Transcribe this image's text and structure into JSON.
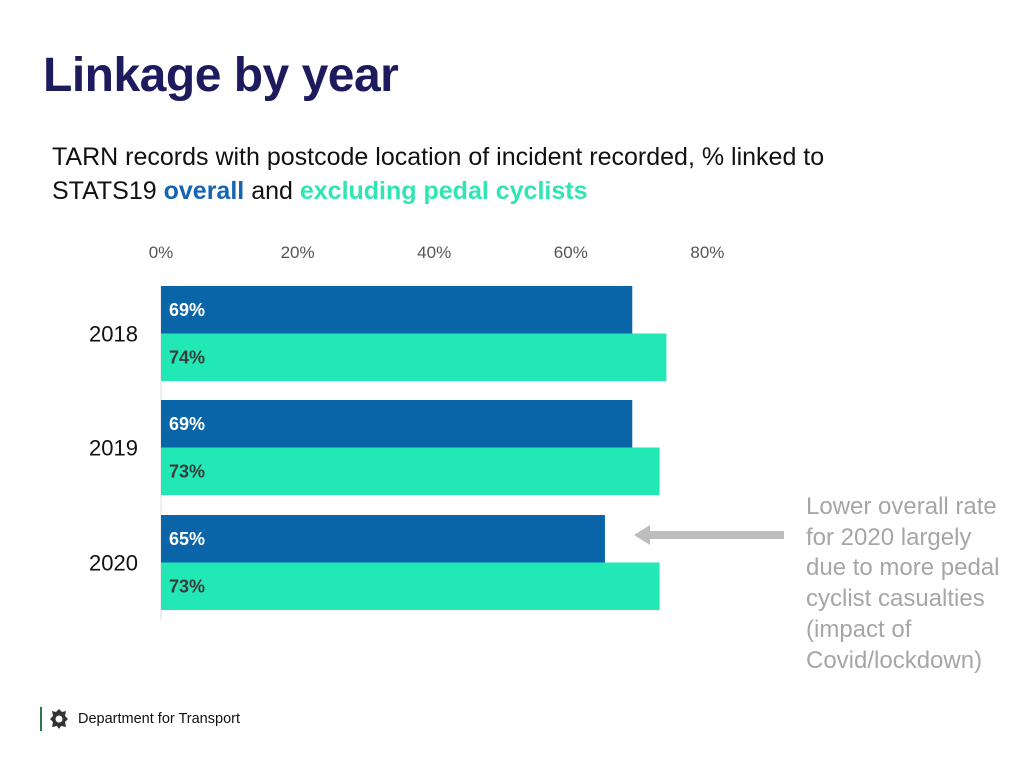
{
  "title": "Linkage by year",
  "subtitle": {
    "prefix": "TARN records with postcode location of incident recorded, % linked to STATS19",
    "overall": "overall",
    "and": "and",
    "excluding": "excluding pedal cyclists"
  },
  "annotation": "Lower overall rate for 2020 largely due to more pedal cyclist casualties (impact of Covid/lockdown)",
  "logo": {
    "text": "Department for Transport"
  },
  "colors": {
    "overall": "#0a64a8",
    "excluding": "#22e8b6",
    "overall_label": "#ffffff",
    "excluding_label": "#3a3a3a",
    "arrow": "#bdbdbd"
  },
  "chart_data": {
    "type": "bar",
    "orientation": "horizontal",
    "categories": [
      "2018",
      "2019",
      "2020"
    ],
    "series": [
      {
        "key": "overall",
        "values": [
          69,
          69,
          65
        ],
        "labels": [
          "69%",
          "69%",
          "65%"
        ]
      },
      {
        "key": "excluding",
        "values": [
          74,
          73,
          73
        ],
        "labels": [
          "74%",
          "73%",
          "73%"
        ]
      }
    ],
    "xlim": [
      0,
      80
    ],
    "ticks": [
      0,
      20,
      40,
      60,
      80
    ],
    "tick_labels": [
      "0%",
      "20%",
      "40%",
      "60%",
      "80%"
    ],
    "axis_position": "top",
    "grid": false
  }
}
